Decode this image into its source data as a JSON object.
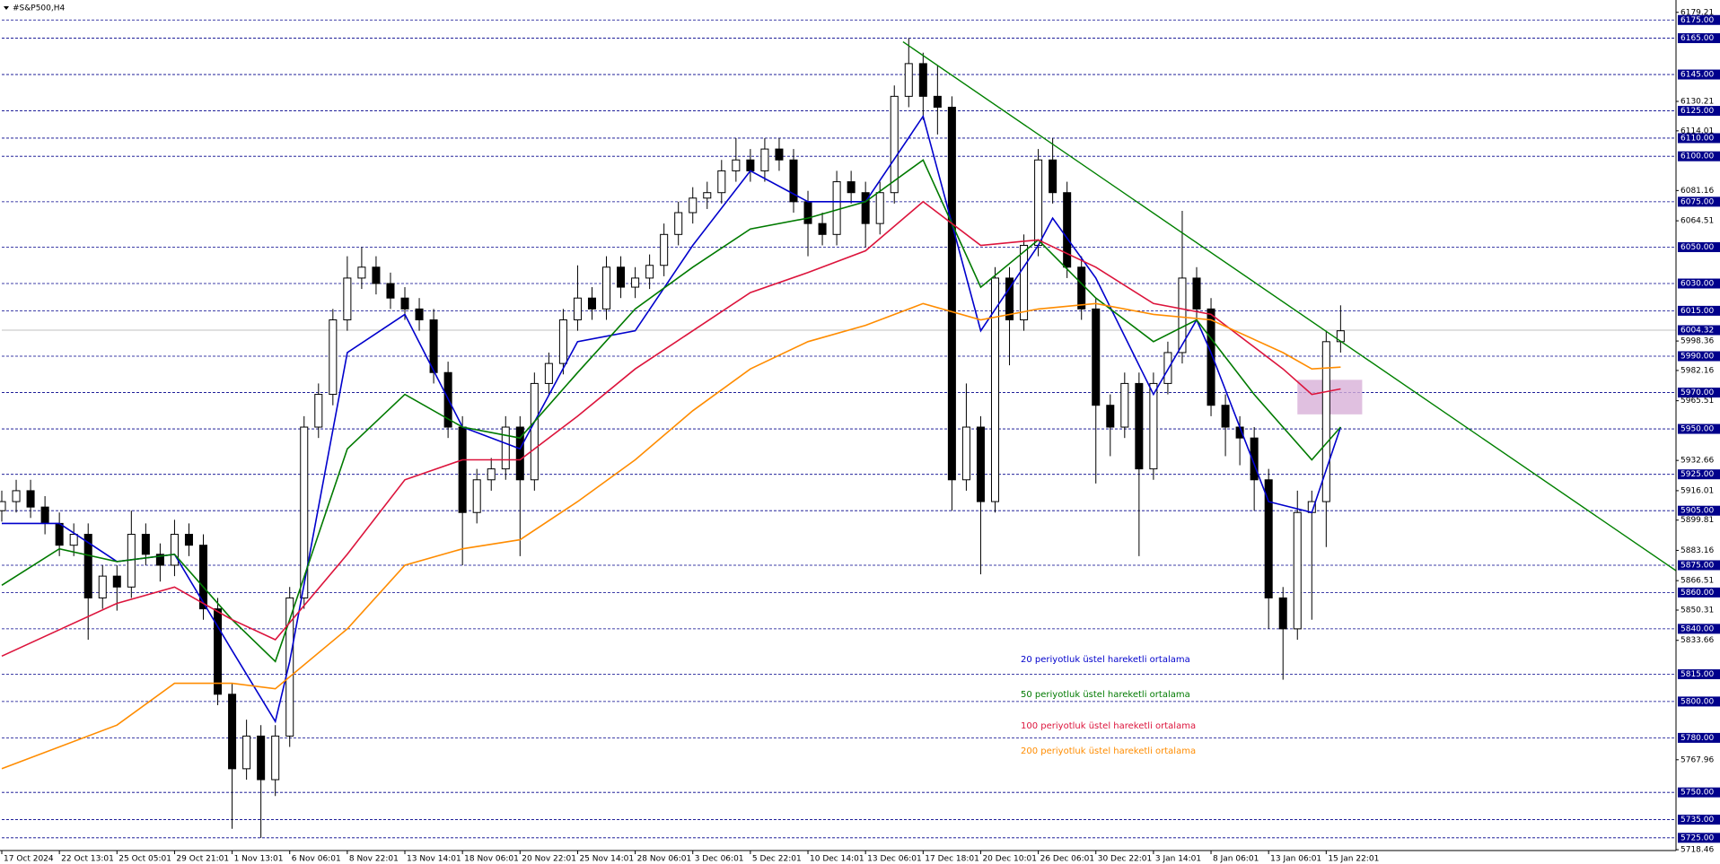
{
  "chart_data": {
    "type": "candlestick",
    "title": "#S&P500,H4",
    "color": "#000000",
    "xlim": [
      0,
      116.3
    ],
    "ylim": [
      5718,
      6186
    ],
    "xticks": [
      {
        "value": 0,
        "label": "17 Oct 2024"
      },
      {
        "value": 4,
        "label": "22 Oct 13:01"
      },
      {
        "value": 8,
        "label": "25 Oct 05:01"
      },
      {
        "value": 12,
        "label": "29 Oct 21:01"
      },
      {
        "value": 16,
        "label": "1 Nov 13:01"
      },
      {
        "value": 20,
        "label": "6 Nov 06:01"
      },
      {
        "value": 24,
        "label": "8 Nov 22:01"
      },
      {
        "value": 28,
        "label": "13 Nov 14:01"
      },
      {
        "value": 32,
        "label": "18 Nov 06:01"
      },
      {
        "value": 36,
        "label": "20 Nov 22:01"
      },
      {
        "value": 40,
        "label": "25 Nov 14:01"
      },
      {
        "value": 44,
        "label": "28 Nov 06:01"
      },
      {
        "value": 48,
        "label": "3 Dec 06:01"
      },
      {
        "value": 52,
        "label": "5 Dec 22:01"
      },
      {
        "value": 56,
        "label": "10 Dec 14:01"
      },
      {
        "value": 60,
        "label": "13 Dec 06:01"
      },
      {
        "value": 64,
        "label": "17 Dec 18:01"
      },
      {
        "value": 68,
        "label": "20 Dec 10:01"
      },
      {
        "value": 72,
        "label": "26 Dec 06:01"
      },
      {
        "value": 76,
        "label": "30 Dec 22:01"
      },
      {
        "value": 80,
        "label": "3 Jan 14:01"
      },
      {
        "value": 84,
        "label": "8 Jan 06:01"
      },
      {
        "value": 88,
        "label": "13 Jan 06:01"
      },
      {
        "value": 92,
        "label": "15 Jan 22:01"
      }
    ],
    "yticks": [
      6179.21,
      6130.21,
      6114.01,
      6081.16,
      6064.51,
      5998.36,
      5982.16,
      5965.51,
      5932.66,
      5916.01,
      5899.81,
      5883.16,
      5866.51,
      5850.31,
      5833.66,
      5767.96,
      5718.46
    ],
    "level_color": "#00008b",
    "levels": [
      {
        "value": 6175,
        "label": "6175.00"
      },
      {
        "value": 6165,
        "label": "6165.00"
      },
      {
        "value": 6145,
        "label": "6145.00"
      },
      {
        "value": 6125,
        "label": "6125.00"
      },
      {
        "value": 6110,
        "label": "6110.00"
      },
      {
        "value": 6100,
        "label": "6100.00"
      },
      {
        "value": 6075,
        "label": "6075.00"
      },
      {
        "value": 6050,
        "label": "6050.00"
      },
      {
        "value": 6030,
        "label": "6030.00"
      },
      {
        "value": 6015,
        "label": "6015.00"
      },
      {
        "value": 5990,
        "label": "5990.00"
      },
      {
        "value": 5970,
        "label": "5970.00"
      },
      {
        "value": 5950,
        "label": "5950.00"
      },
      {
        "value": 5925,
        "label": "5925.00"
      },
      {
        "value": 5905,
        "label": "5905.00"
      },
      {
        "value": 5875,
        "label": "5875.00"
      },
      {
        "value": 5860,
        "label": "5860.00"
      },
      {
        "value": 5840,
        "label": "5840.00"
      },
      {
        "value": 5815,
        "label": "5815.00"
      },
      {
        "value": 5800,
        "label": "5800.00"
      },
      {
        "value": 5780,
        "label": "5780.00"
      },
      {
        "value": 5750,
        "label": "5750.00"
      },
      {
        "value": 5735,
        "label": "5735.00"
      },
      {
        "value": 5725,
        "label": "5725.00"
      }
    ],
    "current_price": 6004.32,
    "open": [
      5905,
      5910,
      5916,
      5907,
      5898,
      5886,
      5892,
      5857,
      5869,
      5863,
      5892,
      5881,
      5875,
      5892,
      5886,
      5851,
      5804,
      5763,
      5781,
      5757,
      5781,
      5857,
      5951,
      5969,
      6010,
      6033,
      6039,
      6030,
      6022,
      6016,
      6010,
      5981,
      5951,
      5904,
      5922,
      5928,
      5951,
      5922,
      5975,
      5986,
      6010,
      6022,
      6016,
      6039,
      6028,
      6033,
      6040,
      6057,
      6069,
      6077,
      6080,
      6092,
      6098,
      6092,
      6104,
      6098,
      6075,
      6063,
      6057,
      6086,
      6080,
      6063,
      6080,
      6133,
      6151,
      6133,
      6127,
      5922,
      5951,
      5910,
      6033,
      6010,
      6051,
      6098,
      6080,
      6039,
      6016,
      5963,
      5951,
      5975,
      5928,
      5975,
      5992,
      6033,
      6016,
      5963,
      5951,
      5945,
      5922,
      5857,
      5840,
      5904,
      5910,
      5998
    ],
    "high": [
      5916,
      5922,
      5922,
      5913,
      5904,
      5898,
      5898,
      5875,
      5875,
      5905,
      5898,
      5887,
      5900,
      5898,
      5892,
      5857,
      5810,
      5790,
      5787,
      5787,
      5863,
      5957,
      5975,
      6016,
      6045,
      6050,
      6045,
      6036,
      6028,
      6022,
      6016,
      5987,
      5957,
      5928,
      5934,
      5957,
      5957,
      5981,
      5992,
      6016,
      6040,
      6028,
      6045,
      6045,
      6039,
      6046,
      6063,
      6075,
      6083,
      6086,
      6098,
      6110,
      6104,
      6110,
      6110,
      6104,
      6081,
      6069,
      6092,
      6092,
      6086,
      6086,
      6139,
      6165,
      6157,
      6150,
      6133,
      5975,
      5957,
      6039,
      6039,
      6057,
      6104,
      6110,
      6086,
      6045,
      6022,
      5969,
      5981,
      5981,
      5981,
      5998,
      6070,
      6039,
      6022,
      5969,
      5957,
      5951,
      5928,
      5863,
      5916,
      5916,
      6004,
      6018
    ],
    "low": [
      5899,
      5904,
      5901,
      5892,
      5880,
      5880,
      5834,
      5851,
      5850,
      5857,
      5875,
      5866,
      5869,
      5880,
      5845,
      5798,
      5730,
      5757,
      5725,
      5748,
      5775,
      5851,
      5945,
      5963,
      6004,
      6027,
      6024,
      6016,
      6010,
      6004,
      5975,
      5945,
      5875,
      5898,
      5916,
      5922,
      5880,
      5916,
      5969,
      5980,
      6004,
      6010,
      6010,
      6022,
      6022,
      6027,
      6034,
      6051,
      6063,
      6071,
      6074,
      6086,
      6086,
      6086,
      6092,
      6069,
      6045,
      6051,
      6051,
      6074,
      6050,
      6057,
      6074,
      6127,
      6120,
      6112,
      5905,
      5916,
      5870,
      5904,
      5985,
      6004,
      6045,
      6074,
      6033,
      6010,
      5920,
      5935,
      5945,
      5880,
      5922,
      5969,
      5986,
      6010,
      5957,
      5935,
      5930,
      5905,
      5840,
      5812,
      5834,
      5845,
      5885,
      5992
    ],
    "close": [
      5910,
      5916,
      5907,
      5898,
      5886,
      5892,
      5857,
      5869,
      5863,
      5892,
      5881,
      5875,
      5892,
      5886,
      5851,
      5804,
      5763,
      5781,
      5757,
      5781,
      5857,
      5951,
      5969,
      6010,
      6033,
      6039,
      6030,
      6022,
      6016,
      6010,
      5981,
      5951,
      5904,
      5922,
      5928,
      5951,
      5922,
      5975,
      5986,
      6010,
      6022,
      6016,
      6039,
      6028,
      6033,
      6040,
      6057,
      6069,
      6077,
      6080,
      6092,
      6098,
      6092,
      6104,
      6098,
      6075,
      6063,
      6057,
      6086,
      6080,
      6063,
      6080,
      6133,
      6151,
      6133,
      6127,
      5922,
      5951,
      5910,
      6033,
      6010,
      6051,
      6098,
      6080,
      6039,
      6016,
      5963,
      5951,
      5975,
      5928,
      5975,
      5992,
      6033,
      6016,
      5963,
      5951,
      5945,
      5922,
      5857,
      5840,
      5904,
      5910,
      5998,
      6004
    ],
    "series": [
      {
        "name": "20 periyotluk üstel hareketli ortalama",
        "color": "#0000cc",
        "x": [
          0,
          4,
          8,
          12,
          16,
          19,
          20,
          24,
          28,
          32,
          36,
          40,
          44,
          48,
          52,
          56,
          60,
          64,
          68,
          72,
          73,
          76,
          80,
          83,
          84,
          88,
          91,
          93
        ],
        "values": [
          5898,
          5898,
          5877,
          5881,
          5828,
          5789,
          5822,
          5992,
          6013,
          5951,
          5939,
          5998,
          6004,
          6051,
          6092,
          6075,
          6075,
          6122,
          6004,
          6051,
          6066,
          6033,
          5969,
          6010,
          5992,
          5910,
          5904,
          5951
        ]
      },
      {
        "name": "50 periyotluk üstel hareketli ortalama",
        "color": "#007a00",
        "x": [
          0,
          4,
          8,
          12,
          16,
          19,
          20,
          24,
          28,
          32,
          36,
          40,
          44,
          48,
          52,
          56,
          60,
          64,
          68,
          72,
          76,
          80,
          83,
          87,
          91,
          93
        ],
        "values": [
          5864,
          5884,
          5877,
          5881,
          5845,
          5822,
          5845,
          5939,
          5969,
          5951,
          5945,
          5981,
          6016,
          6039,
          6060,
          6066,
          6075,
          6098,
          6028,
          6054,
          6022,
          5998,
          6010,
          5969,
          5933,
          5951
        ]
      },
      {
        "name": "100 periyotluk üstel hareketli ortalama",
        "color": "#dc143c",
        "x": [
          0,
          8,
          12,
          16,
          19,
          24,
          28,
          32,
          36,
          40,
          44,
          48,
          52,
          56,
          60,
          64,
          68,
          72,
          76,
          80,
          84,
          89,
          91,
          93
        ],
        "values": [
          5825,
          5854,
          5863,
          5845,
          5834,
          5881,
          5922,
          5933,
          5933,
          5957,
          5983,
          6004,
          6025,
          6036,
          6048,
          6075,
          6051,
          6054,
          6039,
          6019,
          6013,
          5983,
          5969,
          5972
        ]
      },
      {
        "name": "200 periyotluk üstel hareketli ortalama",
        "color": "#ff8c00",
        "x": [
          0,
          8,
          12,
          16,
          19,
          24,
          28,
          32,
          36,
          40,
          44,
          48,
          52,
          56,
          60,
          64,
          68,
          72,
          76,
          80,
          84,
          89,
          91,
          93
        ],
        "values": [
          5763,
          5787,
          5810,
          5810,
          5807,
          5840,
          5875,
          5884,
          5889,
          5910,
          5933,
          5960,
          5983,
          5998,
          6007,
          6019,
          6010,
          6016,
          6019,
          6013,
          6010,
          5992,
          5983,
          5984
        ]
      }
    ],
    "trendline": {
      "color": "#008000",
      "x": [
        62.6,
        116.3
      ],
      "values": [
        6163,
        5872
      ]
    },
    "zone": {
      "color": "#d8b0d8",
      "x": [
        90,
        94.5
      ],
      "values": [
        5958,
        5977
      ]
    }
  }
}
